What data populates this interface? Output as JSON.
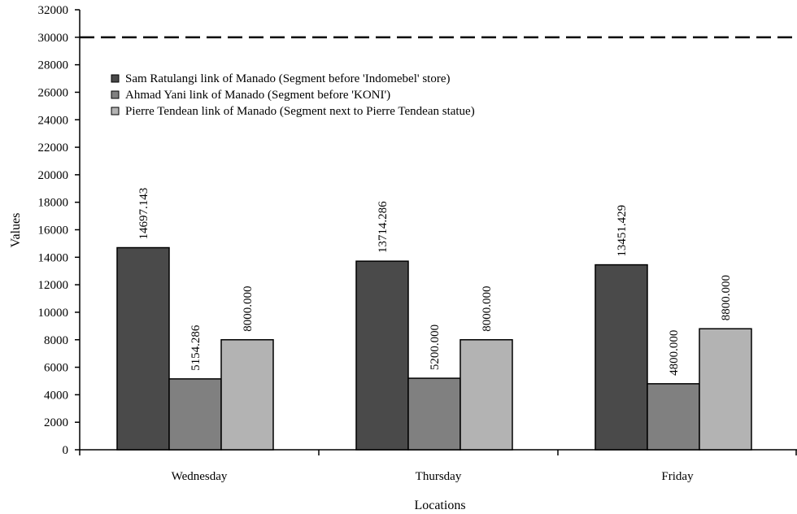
{
  "chart_data": {
    "type": "bar",
    "xlabel": "Locations",
    "ylabel": "Values",
    "categories": [
      "Wednesday",
      "Thursday",
      "Friday"
    ],
    "ylim": [
      0,
      32000
    ],
    "ytick_step": 2000,
    "reference_line": {
      "value": 30000,
      "style": "dashed"
    },
    "series": [
      {
        "name": "Sam Ratulangi link of Manado (Segment before 'Indomebel' store)",
        "color": "#4a4a4a",
        "values": [
          14697.143,
          13714.286,
          13451.429
        ],
        "labels": [
          "14697.143",
          "13714.286",
          "13451.429"
        ]
      },
      {
        "name": "Ahmad Yani link of Manado (Segment before 'KONI')",
        "color": "#808080",
        "values": [
          5154.286,
          5200.0,
          4800.0
        ],
        "labels": [
          "5154.286",
          "5200.000",
          "4800.000"
        ]
      },
      {
        "name": "Pierre Tendean link of Manado (Segment next to Pierre Tendean statue)",
        "color": "#b3b3b3",
        "values": [
          8000.0,
          8000.0,
          8800.0
        ],
        "labels": [
          "8000.000",
          "8000.000",
          "8800.000"
        ]
      }
    ],
    "legend_position": "upper-left",
    "grid": false
  }
}
